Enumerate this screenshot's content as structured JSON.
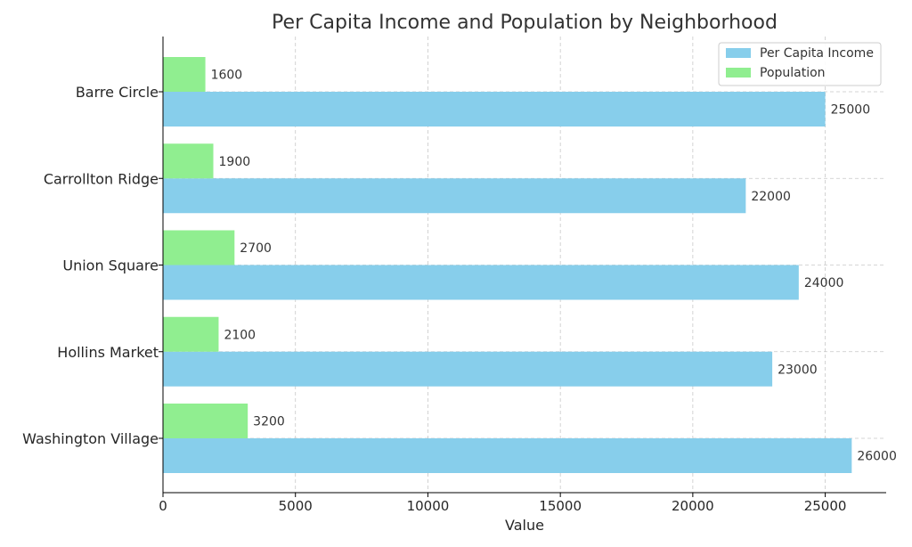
{
  "chart_data": {
    "type": "bar",
    "orientation": "horizontal",
    "title": "Per Capita Income and Population by Neighborhood",
    "xlabel": "Value",
    "ylabel": "",
    "xlim": [
      0,
      27300
    ],
    "x_ticks": [
      0,
      5000,
      10000,
      15000,
      20000,
      25000
    ],
    "grid": true,
    "legend_position": "top-right",
    "categories": [
      "Barre Circle",
      "Carrollton Ridge",
      "Union Square",
      "Hollins Market",
      "Washington Village"
    ],
    "series": [
      {
        "name": "Per Capita Income",
        "color": "#87ceeb",
        "values": [
          25000,
          22000,
          24000,
          23000,
          26000
        ]
      },
      {
        "name": "Population",
        "color": "#90ee90",
        "values": [
          1600,
          1900,
          2700,
          2100,
          3200
        ]
      }
    ]
  }
}
